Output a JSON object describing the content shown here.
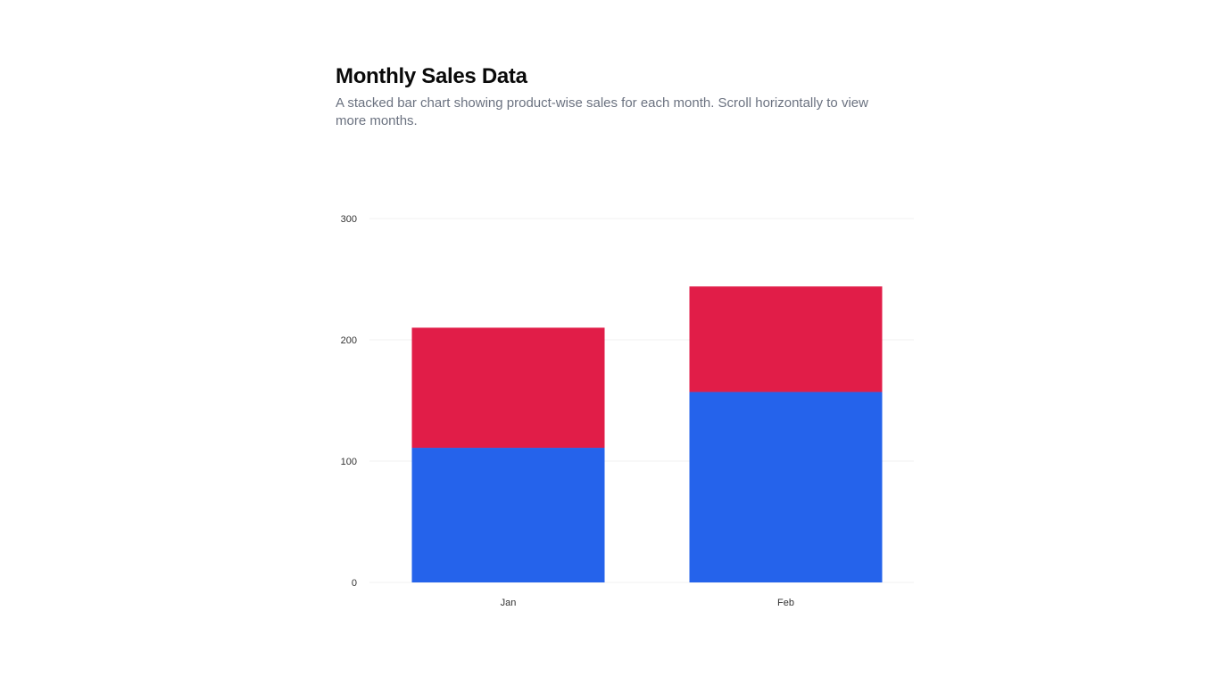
{
  "header": {
    "title": "Monthly Sales Data",
    "subtitle": "A stacked bar chart showing product-wise sales for each month. Scroll horizontally to view more months."
  },
  "colors": {
    "series_a": "#2563eb",
    "series_b": "#e11d48",
    "grid": "#f0f0f0",
    "tick_text": "#333333"
  },
  "chart_data": {
    "type": "bar",
    "stacked": true,
    "categories": [
      "Jan",
      "Feb"
    ],
    "series": [
      {
        "values": [
          111,
          157
        ],
        "color": "#2563eb"
      },
      {
        "values": [
          99,
          87
        ],
        "color": "#e11d48"
      }
    ],
    "ylim": [
      0,
      300
    ],
    "yticks": [
      0,
      100,
      200,
      300
    ],
    "grid": true,
    "horizontal_scroll": true
  }
}
